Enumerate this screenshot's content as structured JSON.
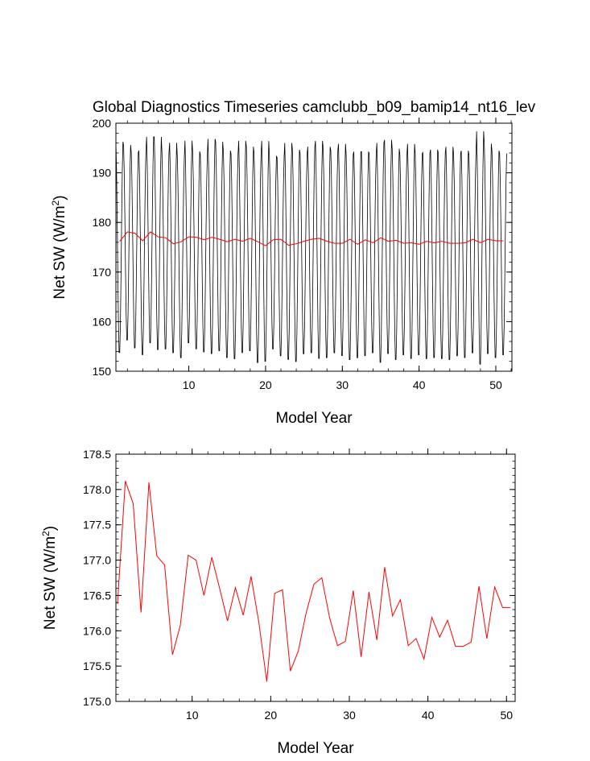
{
  "figure": {
    "title": "Global Diagnostics Timeseries camclubb_b09_bamip14_nt16_lev"
  },
  "chart_data": [
    {
      "type": "line",
      "title": "Global Diagnostics Timeseries camclubb_b09_bamip14_nt16_lev",
      "xlabel": "Model Year",
      "ylabel": "Net SW (W/m2)",
      "ylabel_main": "Net SW (W/m",
      "ylabel_sup": "2",
      "ylabel_close": ")",
      "xlim": [
        0.5,
        52.1
      ],
      "ylim": [
        150,
        200
      ],
      "xticks": [
        10,
        20,
        30,
        40,
        50
      ],
      "yticks": [
        150,
        160,
        170,
        180,
        190,
        200
      ],
      "ytick_labels": [
        "150",
        "160",
        "170",
        "180",
        "190",
        "200"
      ],
      "grid": false,
      "series": [
        {
          "color": "#000000",
          "resolution": "monthly",
          "start_year": 0.5,
          "annual_max": [
            197.0,
            196.3,
            194.8,
            195.2,
            198.0,
            198.0,
            194.8,
            196.8,
            194.0,
            197.2,
            195.0,
            194.4,
            197.6,
            197.0,
            195.2,
            194.6,
            197.2,
            196.0,
            194.8,
            197.2,
            194.0,
            193.8,
            196.8,
            195.4,
            194.6,
            196.0,
            197.2,
            196.0,
            195.2,
            196.6,
            194.4,
            195.0,
            195.0,
            194.6,
            196.8,
            197.4,
            195.6,
            194.4,
            196.6,
            194.6,
            194.8,
            195.4,
            194.8,
            196.0,
            194.6,
            195.2,
            194.4,
            199.2,
            196.6,
            195.2,
            194.6
          ],
          "annual_min": [
            153.0,
            155.6,
            154.0,
            152.6,
            155.0,
            153.6,
            153.8,
            153.0,
            152.0,
            155.0,
            153.8,
            153.2,
            152.8,
            153.4,
            152.0,
            151.8,
            153.0,
            153.4,
            151.0,
            151.2,
            153.8,
            152.4,
            151.6,
            151.2,
            152.8,
            153.0,
            151.8,
            152.0,
            153.0,
            152.4,
            151.6,
            152.0,
            152.4,
            153.0,
            151.0,
            152.8,
            151.6,
            152.6,
            151.8,
            152.6,
            151.8,
            152.0,
            151.8,
            151.6,
            152.4,
            152.0,
            153.0,
            150.6,
            152.8,
            152.0,
            152.6
          ]
        },
        {
          "color": "#ff0000",
          "x": [
            1,
            2,
            3,
            4,
            5,
            6,
            7,
            8,
            9,
            10,
            11,
            12,
            13,
            14,
            15,
            16,
            17,
            18,
            19,
            20,
            21,
            22,
            23,
            24,
            25,
            26,
            27,
            28,
            29,
            30,
            31,
            32,
            33,
            34,
            35,
            36,
            37,
            38,
            39,
            40,
            41,
            42,
            43,
            44,
            45,
            46,
            47,
            48,
            49,
            50,
            51
          ],
          "values": [
            176.2,
            178.1,
            177.8,
            176.3,
            178.1,
            177.1,
            176.9,
            175.7,
            176.1,
            177.1,
            177.0,
            176.5,
            177.0,
            176.6,
            176.1,
            176.6,
            176.2,
            176.8,
            176.1,
            175.3,
            176.5,
            176.6,
            175.4,
            175.7,
            176.2,
            176.6,
            176.8,
            176.2,
            175.8,
            175.8,
            176.6,
            175.6,
            176.5,
            175.9,
            176.9,
            176.2,
            176.4,
            175.8,
            175.9,
            175.6,
            176.2,
            175.9,
            176.2,
            175.8,
            175.8,
            175.9,
            176.6,
            175.9,
            176.6,
            176.3,
            176.3
          ]
        }
      ]
    },
    {
      "type": "line",
      "title": "",
      "xlabel": "Model Year",
      "ylabel": "Net SW (W/m2)",
      "ylabel_main": "Net SW (W/m",
      "ylabel_sup": "2",
      "ylabel_close": ")",
      "xlim": [
        0.3,
        51.1
      ],
      "ylim": [
        175.0,
        178.5
      ],
      "xticks": [
        10,
        20,
        30,
        40,
        50
      ],
      "yticks": [
        175.0,
        175.5,
        176.0,
        176.5,
        177.0,
        177.5,
        178.0,
        178.5
      ],
      "ytick_labels": [
        "175.0",
        "175.5",
        "176.0",
        "176.5",
        "177.0",
        "177.5",
        "178.0",
        "178.5"
      ],
      "grid": false,
      "series": [
        {
          "color": "#ff0000",
          "x": [
            0.5,
            1.5,
            2.5,
            3.5,
            4.5,
            5.5,
            6.5,
            7.5,
            8.5,
            9.5,
            10.5,
            11.5,
            12.5,
            13.5,
            14.5,
            15.5,
            16.5,
            17.5,
            18.5,
            19.5,
            20.5,
            21.5,
            22.5,
            23.5,
            24.5,
            25.5,
            26.5,
            27.5,
            28.5,
            29.5,
            30.5,
            31.5,
            32.5,
            33.5,
            34.5,
            35.5,
            36.5,
            37.5,
            38.5,
            39.5,
            40.5,
            41.5,
            42.5,
            43.5,
            44.5,
            45.5,
            46.5,
            47.5,
            48.5,
            49.5,
            50.5
          ],
          "values": [
            176.38,
            178.12,
            177.8,
            176.26,
            178.1,
            177.06,
            176.93,
            175.66,
            176.08,
            177.07,
            177.0,
            176.5,
            177.04,
            176.6,
            176.14,
            176.61,
            176.22,
            176.77,
            176.11,
            175.28,
            176.53,
            176.58,
            175.43,
            175.71,
            176.25,
            176.66,
            176.75,
            176.18,
            175.79,
            175.85,
            176.57,
            175.63,
            176.55,
            175.87,
            176.9,
            176.21,
            176.44,
            175.79,
            175.89,
            175.6,
            176.19,
            175.91,
            176.15,
            175.78,
            175.78,
            175.84,
            176.63,
            175.89,
            176.62,
            176.33,
            176.33
          ]
        }
      ]
    }
  ]
}
